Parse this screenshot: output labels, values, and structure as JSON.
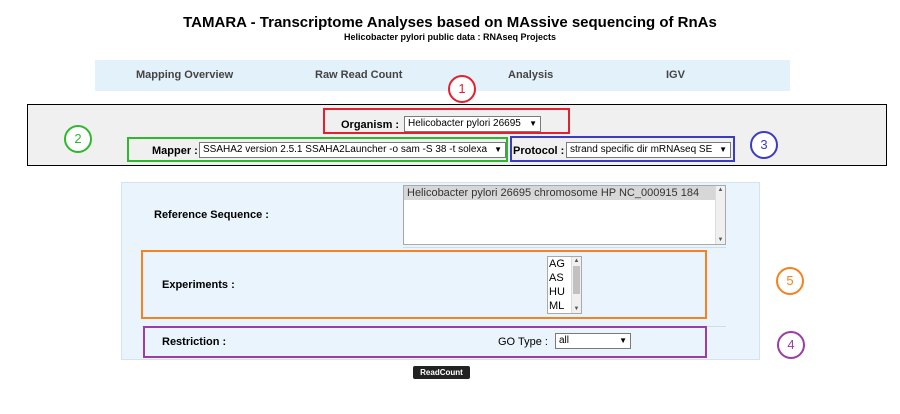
{
  "header": {
    "title": "TAMARA - Transcriptome Analyses based on MAssive sequencing of RnAs",
    "subtitle": "Helicobacter pylori public data : RNAseq Projects"
  },
  "nav": {
    "items": [
      {
        "label": "Mapping Overview"
      },
      {
        "label": "Raw Read Count"
      },
      {
        "label": "Analysis"
      },
      {
        "label": "IGV"
      }
    ]
  },
  "filters": {
    "organism": {
      "label": "Organism :",
      "value": "Helicobacter pylori 26695"
    },
    "mapper": {
      "label": "Mapper :",
      "value": "SSAHA2 version 2.5.1 SSAHA2Launcher -o sam -S 38 -t solexa"
    },
    "protocol": {
      "label": "Protocol :",
      "value": "strand specific dir mRNAseq SE"
    }
  },
  "form": {
    "reference": {
      "label": "Reference Sequence :",
      "value": "Helicobacter pylori 26695 chromosome HP NC_000915 184"
    },
    "experiments": {
      "label": "Experiments :",
      "options": [
        "AG",
        "AS",
        "HU",
        "ML"
      ]
    },
    "restriction": {
      "label": "Restriction :",
      "go_type_label": "GO Type :",
      "go_type_value": "all"
    }
  },
  "actions": {
    "readcount_label": "ReadCount"
  },
  "annotations": {
    "markers": [
      "1",
      "2",
      "3",
      "4",
      "5"
    ],
    "colors": {
      "red": "#e3202c",
      "green": "#2eb82e",
      "blue": "#3b3bc6",
      "orange": "#f58220",
      "purple": "#9b3ca8"
    }
  }
}
